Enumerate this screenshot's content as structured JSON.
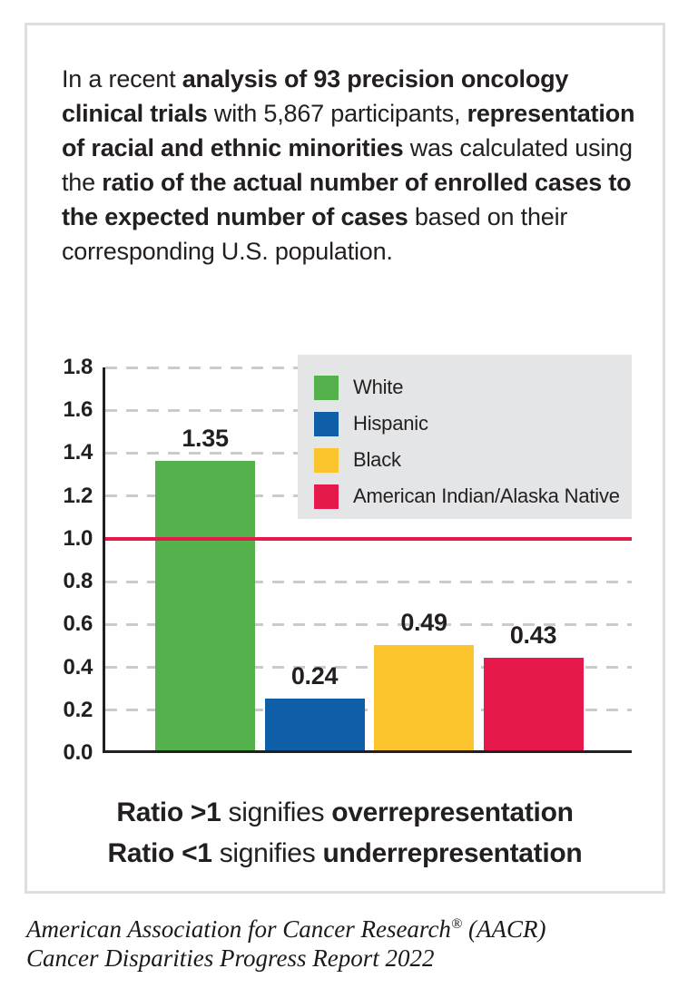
{
  "intro": {
    "segments": [
      {
        "t": "In a recent ",
        "b": false
      },
      {
        "t": "analysis of 93 precision oncology clinical trials",
        "b": true
      },
      {
        "t": " with 5,867 participants, ",
        "b": false
      },
      {
        "t": "representation of racial and ethnic minorities",
        "b": true
      },
      {
        "t": " was calculated using the ",
        "b": false
      },
      {
        "t": "ratio of the actual number of enrolled cases to the expected number of cases",
        "b": true
      },
      {
        "t": " based on their corresponding U.S. population.",
        "b": false
      }
    ]
  },
  "chart_data": {
    "type": "bar",
    "title": "",
    "xlabel": "",
    "ylabel": "",
    "categories": [
      "White",
      "Hispanic",
      "Black",
      "American Indian/Alaska Native"
    ],
    "values": [
      1.35,
      0.24,
      0.49,
      0.43
    ],
    "value_labels": [
      "1.35",
      "0.24",
      "0.49",
      "0.43"
    ],
    "bar_colors": [
      "#55B14C",
      "#0E5FA8",
      "#FCC42C",
      "#E5194B"
    ],
    "ylim": [
      0,
      1.8
    ],
    "y_ticks": [
      "0.0",
      "0.2",
      "0.4",
      "0.6",
      "0.8",
      "1.0",
      "1.2",
      "1.4",
      "1.6",
      "1.8"
    ],
    "grid": "horizontal-dashed",
    "reference_line": {
      "value": 1.0,
      "color": "#E5194B"
    },
    "legend": {
      "position": "top-right",
      "background": "#E4E5E6",
      "items": [
        {
          "label": "White",
          "color": "#55B14C"
        },
        {
          "label": "Hispanic",
          "color": "#0E5FA8"
        },
        {
          "label": "Black",
          "color": "#FCC42C"
        },
        {
          "label": "American Indian/Alaska Native",
          "color": "#E5194B"
        }
      ]
    }
  },
  "caption": {
    "line1": [
      {
        "t": "Ratio >1",
        "b": true
      },
      {
        "t": " signifies ",
        "b": false
      },
      {
        "t": "overrepresentation",
        "b": true
      }
    ],
    "line2": [
      {
        "t": "Ratio <1",
        "b": true
      },
      {
        "t": " signifies ",
        "b": false
      },
      {
        "t": "underrepresentation",
        "b": true
      }
    ]
  },
  "footer": {
    "line1_segments": [
      {
        "t": "American Association for Cancer Research",
        "b": false
      },
      {
        "t": "®",
        "b": false,
        "sup": true
      },
      {
        "t": " (AACR)",
        "b": false
      }
    ],
    "line2": "Cancer Disparities Progress Report 2022"
  },
  "colors": {
    "text": "#231F20",
    "axis": "#231F20",
    "gridline": "#CBCBCB",
    "card_border": "#DEDEDE",
    "legend_background": "#E4E5E6",
    "reference_line": "#E5194B"
  }
}
